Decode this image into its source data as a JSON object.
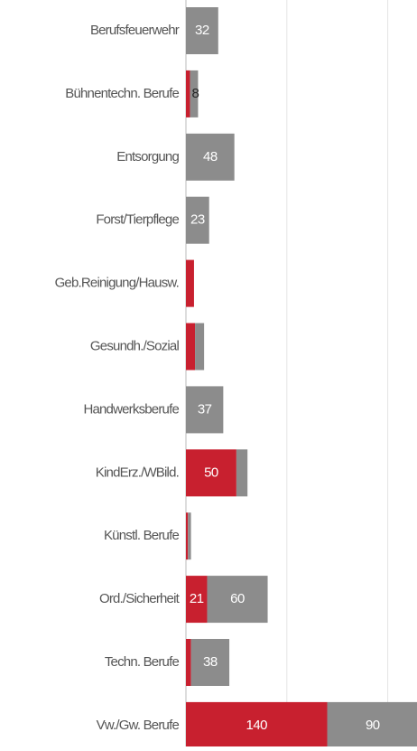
{
  "chart_data": {
    "type": "stacked-bar-horizontal",
    "categories": [
      "Berufsfeuerwehr",
      "Bühnentechn. Berufe",
      "Entsorgung",
      "Forst/Tierpflege",
      "Geb.Reinigung/Hausw.",
      "Gesundh./Sozial",
      "Handwerksberufe",
      "KindErz./WBild.",
      "Künstl. Berufe",
      "Ord./Sicherheit",
      "Techn. Berufe",
      "Vw./Gw. Berufe"
    ],
    "series": [
      {
        "color": "#c8202f",
        "values": [
          0,
          4,
          0,
          0,
          8,
          9,
          0,
          50,
          2,
          21,
          5,
          140
        ],
        "value_labels": [
          null,
          null,
          null,
          null,
          null,
          null,
          null,
          "50",
          null,
          "21",
          null,
          "140"
        ]
      },
      {
        "color": "#8c8c8c",
        "values": [
          32,
          8,
          48,
          23,
          0,
          9,
          37,
          11,
          3,
          60,
          38,
          90
        ],
        "value_labels": [
          "32",
          "8",
          "48",
          "23",
          null,
          null,
          "37",
          null,
          null,
          "60",
          "38",
          "90"
        ]
      }
    ],
    "xlim": [
      0,
      229
    ],
    "xticks": [
      0,
      100,
      200
    ],
    "grid": true,
    "tick_labels": false
  }
}
